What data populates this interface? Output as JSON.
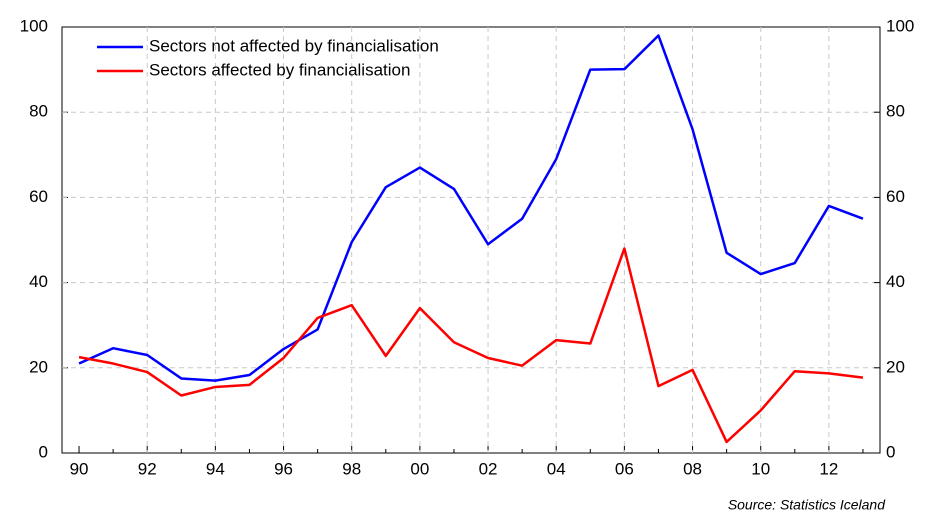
{
  "chart_data": {
    "type": "line",
    "categories": [
      "90",
      null,
      "92",
      null,
      "94",
      null,
      "96",
      null,
      "98",
      null,
      "00",
      null,
      "02",
      null,
      "04",
      null,
      "06",
      null,
      "08",
      null,
      "10",
      null,
      "12",
      null
    ],
    "series": [
      {
        "name": "Sectors not affected by financialisation",
        "color": "#0000ff",
        "values": [
          21,
          24.6,
          23,
          17.5,
          17,
          18.3,
          24.4,
          29,
          49.5,
          62.4,
          67,
          62,
          49,
          55,
          69,
          90,
          90.1,
          98,
          76,
          47,
          42,
          44.6,
          58,
          55
        ]
      },
      {
        "name": "Sectors affected by financialisation",
        "color": "#ff0000",
        "values": [
          22.5,
          21,
          19,
          13.5,
          15.5,
          16,
          22.3,
          31.7,
          34.7,
          22.8,
          34,
          26,
          22.3,
          20.5,
          26.5,
          25.7,
          48,
          15.7,
          19.5,
          2.6,
          10,
          19.2,
          18.7,
          17.7
        ]
      }
    ],
    "ylim": [
      0,
      100
    ],
    "yticks": [
      0,
      20,
      40,
      60,
      80,
      100
    ],
    "y2lim": [
      0,
      100
    ],
    "y2ticks": [
      0,
      20,
      40,
      60,
      80,
      100
    ],
    "grid": true,
    "legend": "top-left",
    "annotation": "Source: Statistics Iceland"
  }
}
